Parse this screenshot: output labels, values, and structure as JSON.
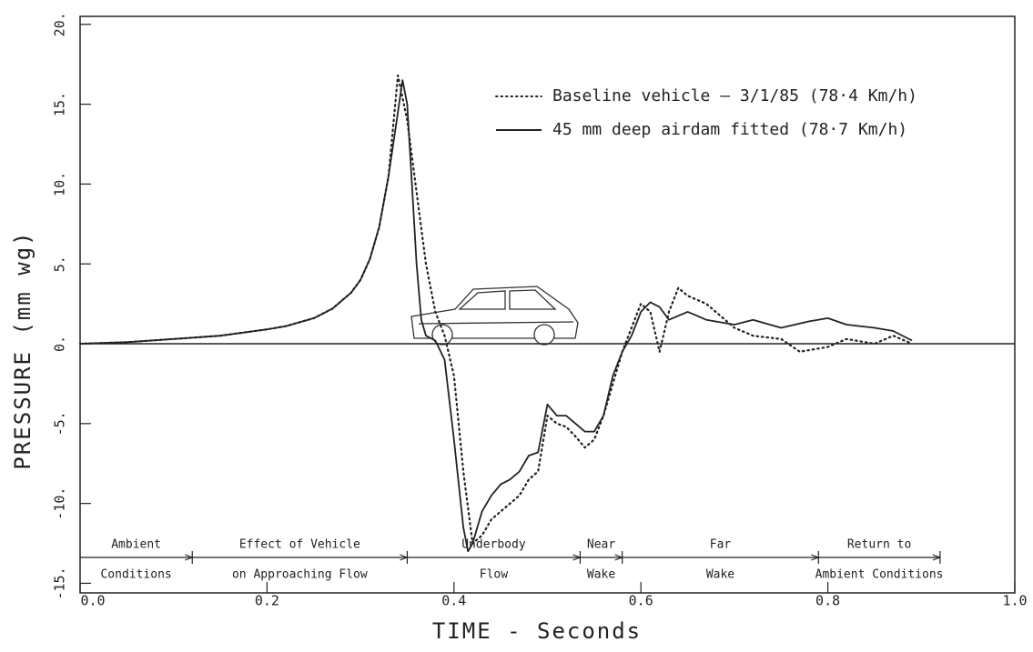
{
  "chart_data": {
    "type": "line",
    "xlabel": "TIME  -  Seconds",
    "ylabel": "PRESSURE  (mm  wg)",
    "xlim": [
      0,
      1
    ],
    "ylim": [
      -15.6,
      20.5
    ],
    "xticks": [
      {
        "value": 0,
        "label": "0.0"
      },
      {
        "value": 0.2,
        "label": "0.2"
      },
      {
        "value": 0.4,
        "label": "0.4"
      },
      {
        "value": 0.6,
        "label": "0.6"
      },
      {
        "value": 0.8,
        "label": "0.8"
      },
      {
        "value": 1,
        "label": "1.0"
      }
    ],
    "yticks": [
      {
        "value": -15,
        "label": "-15."
      },
      {
        "value": -10,
        "label": "-10."
      },
      {
        "value": -5,
        "label": "-5."
      },
      {
        "value": 0,
        "label": "0."
      },
      {
        "value": 5,
        "label": "5."
      },
      {
        "value": 10,
        "label": "10."
      },
      {
        "value": 15,
        "label": "15."
      },
      {
        "value": 20,
        "label": "20."
      }
    ],
    "series": [
      {
        "name": "Baseline  vehicle — 3/1/85 (78·4 Km/h)",
        "color": "#222",
        "dash": "dotted",
        "x": [
          0,
          0.05,
          0.1,
          0.15,
          0.2,
          0.22,
          0.25,
          0.27,
          0.29,
          0.3,
          0.31,
          0.32,
          0.33,
          0.34,
          0.35,
          0.36,
          0.37,
          0.38,
          0.39,
          0.4,
          0.41,
          0.42,
          0.43,
          0.44,
          0.45,
          0.46,
          0.47,
          0.48,
          0.49,
          0.5,
          0.51,
          0.52,
          0.53,
          0.54,
          0.55,
          0.56,
          0.57,
          0.58,
          0.59,
          0.6,
          0.61,
          0.62,
          0.63,
          0.64,
          0.65,
          0.67,
          0.7,
          0.72,
          0.75,
          0.77,
          0.8,
          0.82,
          0.85,
          0.87,
          0.89
        ],
        "values": [
          0,
          0.1,
          0.3,
          0.5,
          0.9,
          1.1,
          1.6,
          2.2,
          3.2,
          4.0,
          5.3,
          7.3,
          10.5,
          16.8,
          14,
          9.5,
          5,
          2,
          0.5,
          -2,
          -8,
          -12.5,
          -12,
          -11,
          -10.5,
          -10,
          -9.5,
          -8.5,
          -8,
          -4.5,
          -5,
          -5.2,
          -5.8,
          -6.5,
          -6,
          -4.5,
          -2.5,
          -0.5,
          1,
          2.5,
          2,
          -0.5,
          2,
          3.5,
          3,
          2.5,
          1,
          0.5,
          0.3,
          -0.5,
          -0.2,
          0.3,
          0,
          0.5,
          0
        ]
      },
      {
        "name": "45 mm deep airdam fitted (78·7 Km/h)",
        "color": "#222",
        "dash": "solid",
        "x": [
          0,
          0.05,
          0.1,
          0.15,
          0.2,
          0.22,
          0.25,
          0.27,
          0.29,
          0.3,
          0.31,
          0.32,
          0.33,
          0.34,
          0.345,
          0.35,
          0.355,
          0.36,
          0.365,
          0.37,
          0.38,
          0.39,
          0.4,
          0.41,
          0.415,
          0.42,
          0.43,
          0.44,
          0.45,
          0.46,
          0.47,
          0.48,
          0.49,
          0.5,
          0.51,
          0.52,
          0.53,
          0.54,
          0.55,
          0.56,
          0.57,
          0.58,
          0.59,
          0.6,
          0.61,
          0.62,
          0.63,
          0.65,
          0.67,
          0.7,
          0.72,
          0.75,
          0.78,
          0.8,
          0.82,
          0.85,
          0.87,
          0.89
        ],
        "values": [
          0,
          0.1,
          0.3,
          0.5,
          0.9,
          1.1,
          1.6,
          2.2,
          3.2,
          4.0,
          5.3,
          7.3,
          10.5,
          14.5,
          16.5,
          15,
          10,
          5,
          1.5,
          0.5,
          0.2,
          -1,
          -6,
          -11.5,
          -13,
          -12.5,
          -10.5,
          -9.5,
          -8.8,
          -8.5,
          -8,
          -7,
          -6.8,
          -3.8,
          -4.5,
          -4.5,
          -5,
          -5.5,
          -5.5,
          -4.5,
          -2,
          -0.5,
          0.5,
          2,
          2.6,
          2.3,
          1.5,
          2,
          1.5,
          1.2,
          1.5,
          1.0,
          1.4,
          1.6,
          1.2,
          1.0,
          0.8,
          0.2
        ]
      }
    ],
    "legend": "upper right",
    "regions": [
      {
        "top": "Ambient",
        "bottom": "Conditions",
        "start": 0,
        "end": 0.12
      },
      {
        "top": "Effect of Vehicle",
        "bottom": "on Approaching Flow",
        "start": 0.12,
        "end": 0.35
      },
      {
        "top": "Underbody",
        "bottom": "Flow",
        "start": 0.35,
        "end": 0.535
      },
      {
        "top": "Near",
        "bottom": "Wake",
        "start": 0.535,
        "end": 0.58
      },
      {
        "top": "Far",
        "bottom": "Wake",
        "start": 0.58,
        "end": 0.79
      },
      {
        "top": "Return to",
        "bottom": "Ambient Conditions",
        "start": 0.79,
        "end": 0.92
      }
    ]
  }
}
